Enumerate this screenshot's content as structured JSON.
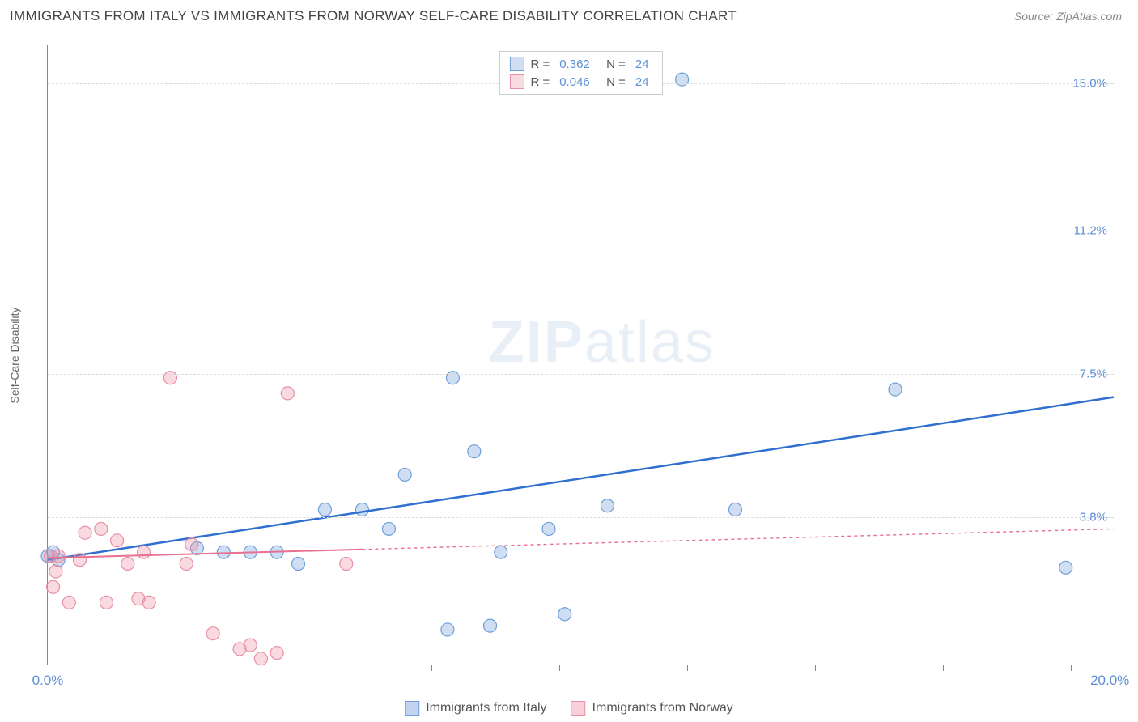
{
  "title": "IMMIGRANTS FROM ITALY VS IMMIGRANTS FROM NORWAY SELF-CARE DISABILITY CORRELATION CHART",
  "source": "Source: ZipAtlas.com",
  "watermark": "ZIPatlas",
  "ylabel": "Self-Care Disability",
  "chart": {
    "type": "scatter",
    "xlim": [
      0.0,
      20.0
    ],
    "ylim": [
      0.0,
      16.0
    ],
    "x_min_label": "0.0%",
    "x_max_label": "20.0%",
    "y_ticks": [
      {
        "v": 3.8,
        "label": "3.8%"
      },
      {
        "v": 7.5,
        "label": "7.5%"
      },
      {
        "v": 11.2,
        "label": "11.2%"
      },
      {
        "v": 15.0,
        "label": "15.0%"
      }
    ],
    "x_tick_positions": [
      2.4,
      4.8,
      7.2,
      9.6,
      12.0,
      14.4,
      16.8,
      19.2
    ],
    "background_color": "#ffffff",
    "grid_color": "#dddddd",
    "axis_color": "#888888",
    "marker_radius": 8,
    "marker_stroke_width": 1.2,
    "series": [
      {
        "name": "Immigrants from Italy",
        "color_fill": "rgba(120,160,220,0.35)",
        "color_stroke": "#6f9fd8",
        "line_color": "#2f6fd0",
        "line_width": 2.5,
        "line_dash": "none",
        "R": "0.362",
        "N": "24",
        "trend": {
          "x1": 0.0,
          "y1": 2.7,
          "x2": 20.0,
          "y2": 6.9,
          "solid_until_x": 20.0
        },
        "points": [
          [
            0.0,
            2.8
          ],
          [
            0.1,
            2.9
          ],
          [
            0.2,
            2.7
          ],
          [
            2.8,
            3.0
          ],
          [
            3.3,
            2.9
          ],
          [
            3.8,
            2.9
          ],
          [
            4.3,
            2.9
          ],
          [
            4.7,
            2.6
          ],
          [
            5.2,
            4.0
          ],
          [
            5.9,
            4.0
          ],
          [
            6.4,
            3.5
          ],
          [
            6.7,
            4.9
          ],
          [
            7.5,
            0.9
          ],
          [
            7.6,
            7.4
          ],
          [
            8.0,
            5.5
          ],
          [
            8.3,
            1.0
          ],
          [
            8.5,
            2.9
          ],
          [
            9.4,
            3.5
          ],
          [
            9.7,
            1.3
          ],
          [
            10.5,
            4.1
          ],
          [
            11.9,
            15.1
          ],
          [
            12.9,
            4.0
          ],
          [
            15.9,
            7.1
          ],
          [
            19.1,
            2.5
          ]
        ]
      },
      {
        "name": "Immigrants from Norway",
        "color_fill": "rgba(240,150,170,0.35)",
        "color_stroke": "#e88fa5",
        "line_color": "#e86f8f",
        "line_width": 2,
        "line_dash": "4,4",
        "R": "0.046",
        "N": "24",
        "trend": {
          "x1": 0.0,
          "y1": 2.75,
          "x2": 20.0,
          "y2": 3.5,
          "solid_until_x": 5.9
        },
        "points": [
          [
            0.05,
            2.8
          ],
          [
            0.1,
            2.0
          ],
          [
            0.15,
            2.4
          ],
          [
            0.2,
            2.8
          ],
          [
            0.4,
            1.6
          ],
          [
            0.6,
            2.7
          ],
          [
            0.7,
            3.4
          ],
          [
            1.0,
            3.5
          ],
          [
            1.1,
            1.6
          ],
          [
            1.3,
            3.2
          ],
          [
            1.5,
            2.6
          ],
          [
            1.7,
            1.7
          ],
          [
            1.8,
            2.9
          ],
          [
            1.9,
            1.6
          ],
          [
            2.3,
            7.4
          ],
          [
            2.6,
            2.6
          ],
          [
            2.7,
            3.1
          ],
          [
            3.1,
            0.8
          ],
          [
            3.8,
            0.5
          ],
          [
            3.6,
            0.4
          ],
          [
            4.0,
            0.15
          ],
          [
            4.3,
            0.3
          ],
          [
            4.5,
            7.0
          ],
          [
            5.6,
            2.6
          ]
        ]
      }
    ]
  },
  "legend": {
    "items": [
      {
        "label": "Immigrants from Italy",
        "fill": "rgba(120,160,220,0.45)",
        "stroke": "#6f9fd8"
      },
      {
        "label": "Immigrants from Norway",
        "fill": "rgba(240,150,170,0.45)",
        "stroke": "#e88fa5"
      }
    ]
  }
}
